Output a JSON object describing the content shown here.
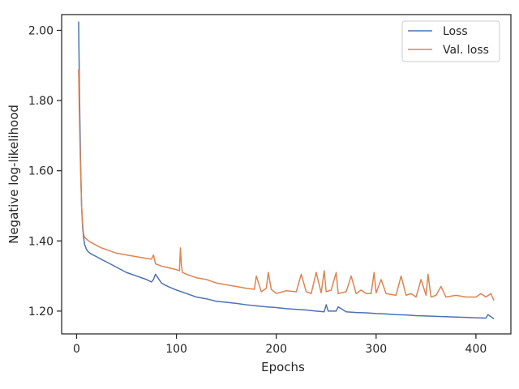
{
  "chart_data": {
    "type": "line",
    "title": "",
    "xlabel": "Epochs",
    "ylabel": "Negative log-likelihood",
    "xlim": [
      -15,
      435
    ],
    "ylim": [
      1.135,
      2.045
    ],
    "xticks": [
      0,
      100,
      200,
      300,
      400
    ],
    "xtick_labels": [
      "0",
      "100",
      "200",
      "300",
      "400"
    ],
    "yticks": [
      1.2,
      1.4,
      1.6,
      1.8,
      2.0
    ],
    "ytick_labels": [
      "1.20",
      "1.40",
      "1.60",
      "1.80",
      "2.00"
    ],
    "grid": false,
    "legend_position": "top-right",
    "series": [
      {
        "name": "Loss",
        "color": "#4c72b0",
        "x": [
          2,
          3,
          4,
          5,
          6,
          7,
          8,
          10,
          12,
          15,
          20,
          25,
          30,
          40,
          50,
          60,
          70,
          75,
          77,
          79,
          85,
          90,
          100,
          110,
          120,
          130,
          140,
          150,
          160,
          170,
          180,
          190,
          200,
          210,
          220,
          230,
          240,
          248,
          250,
          252,
          260,
          262,
          270,
          280,
          290,
          300,
          310,
          320,
          330,
          340,
          350,
          360,
          370,
          380,
          390,
          400,
          410,
          412,
          418
        ],
        "values": [
          2.025,
          1.8,
          1.62,
          1.5,
          1.44,
          1.41,
          1.39,
          1.375,
          1.368,
          1.362,
          1.355,
          1.347,
          1.34,
          1.325,
          1.31,
          1.3,
          1.29,
          1.283,
          1.29,
          1.305,
          1.28,
          1.272,
          1.26,
          1.25,
          1.24,
          1.235,
          1.228,
          1.225,
          1.222,
          1.218,
          1.215,
          1.212,
          1.21,
          1.207,
          1.205,
          1.203,
          1.2,
          1.198,
          1.218,
          1.2,
          1.2,
          1.212,
          1.198,
          1.196,
          1.195,
          1.193,
          1.192,
          1.19,
          1.189,
          1.187,
          1.186,
          1.185,
          1.184,
          1.183,
          1.182,
          1.181,
          1.18,
          1.19,
          1.178
        ]
      },
      {
        "name": "Val. loss",
        "color": "#dd8452",
        "x": [
          2,
          3,
          4,
          5,
          6,
          7,
          8,
          10,
          12,
          15,
          20,
          25,
          30,
          40,
          50,
          60,
          70,
          75,
          77,
          79,
          85,
          90,
          100,
          103,
          104,
          105,
          106,
          110,
          120,
          130,
          140,
          150,
          160,
          170,
          178,
          180,
          185,
          190,
          192,
          195,
          200,
          210,
          220,
          225,
          230,
          235,
          240,
          245,
          248,
          250,
          255,
          260,
          262,
          270,
          275,
          280,
          285,
          290,
          295,
          298,
          300,
          305,
          310,
          320,
          325,
          330,
          335,
          340,
          345,
          350,
          352,
          355,
          360,
          365,
          370,
          380,
          390,
          400,
          405,
          410,
          415,
          418
        ],
        "values": [
          1.89,
          1.72,
          1.6,
          1.5,
          1.45,
          1.42,
          1.41,
          1.405,
          1.4,
          1.395,
          1.387,
          1.38,
          1.375,
          1.365,
          1.36,
          1.355,
          1.35,
          1.348,
          1.36,
          1.335,
          1.328,
          1.325,
          1.318,
          1.315,
          1.38,
          1.33,
          1.31,
          1.305,
          1.295,
          1.29,
          1.28,
          1.275,
          1.27,
          1.265,
          1.262,
          1.3,
          1.255,
          1.265,
          1.31,
          1.262,
          1.25,
          1.258,
          1.255,
          1.305,
          1.255,
          1.25,
          1.31,
          1.252,
          1.315,
          1.255,
          1.26,
          1.31,
          1.25,
          1.255,
          1.3,
          1.25,
          1.26,
          1.25,
          1.25,
          1.31,
          1.252,
          1.29,
          1.25,
          1.245,
          1.3,
          1.245,
          1.25,
          1.24,
          1.29,
          1.245,
          1.305,
          1.24,
          1.245,
          1.27,
          1.24,
          1.245,
          1.24,
          1.24,
          1.25,
          1.24,
          1.25,
          1.23
        ]
      }
    ]
  }
}
